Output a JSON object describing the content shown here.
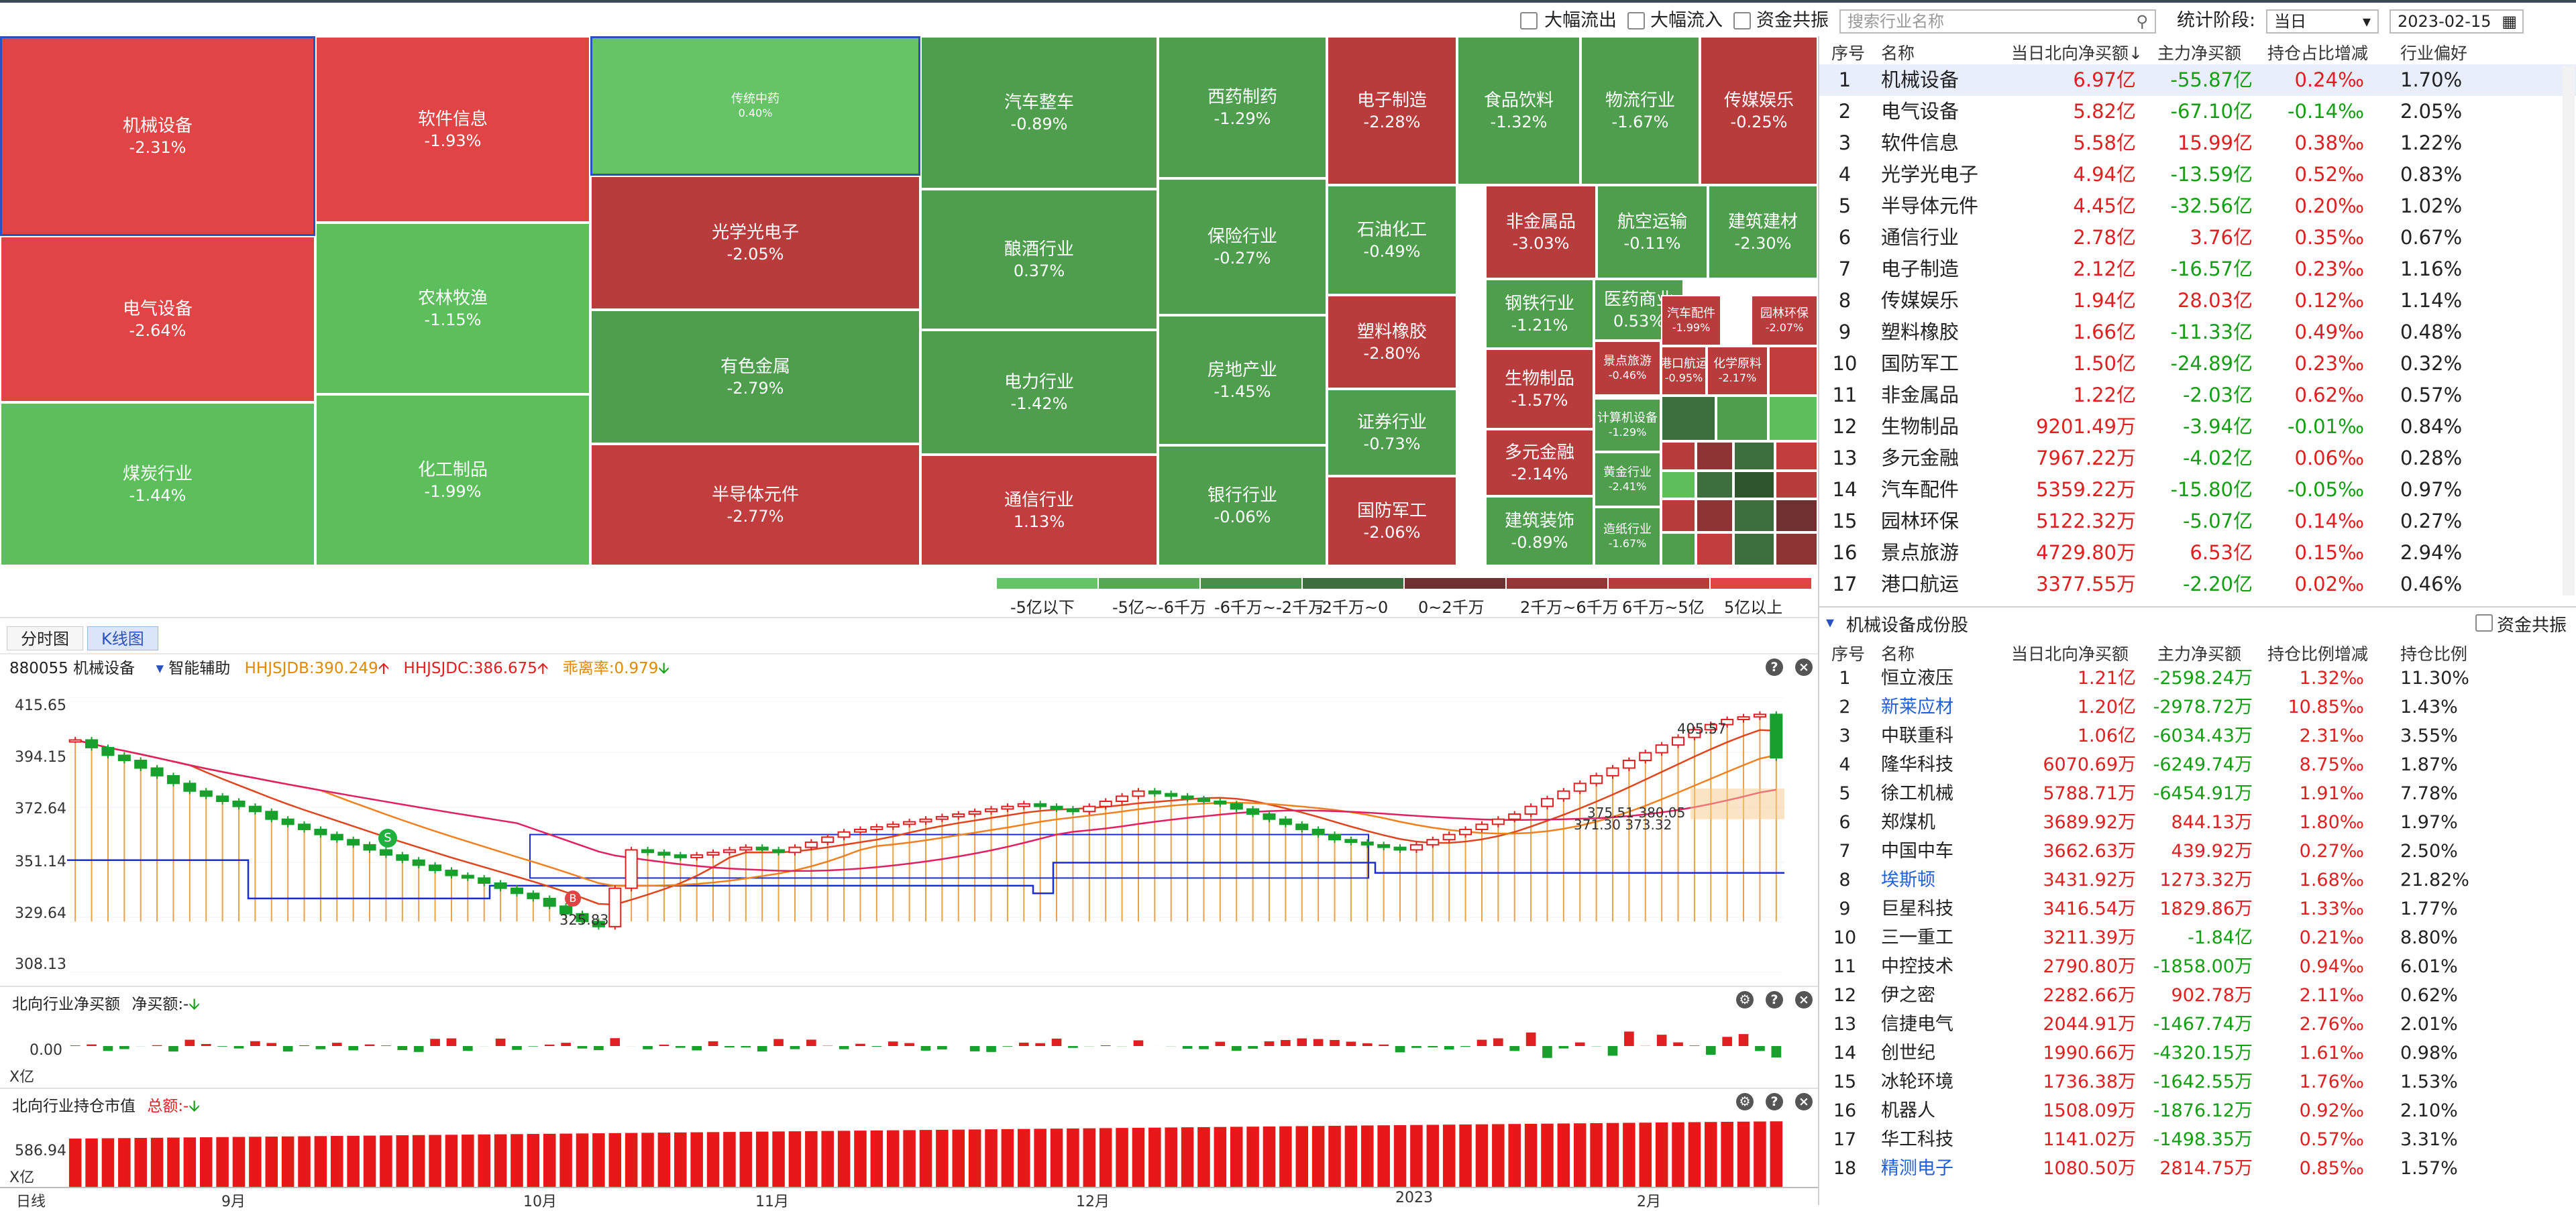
{
  "topbar": {
    "outflow_label": "大幅流出",
    "inflow_label": "大幅流入",
    "capital_label": "资金共振",
    "search_placeholder": "搜索行业名称",
    "period_label": "统计阶段:",
    "period_value": "当日",
    "date_value": "2023-02-15"
  },
  "treemap": {
    "tiles": [
      {
        "name": "机械设备",
        "value": "-2.31%",
        "color": "#e04444"
      },
      {
        "name": "电气设备",
        "value": "-2.64%",
        "color": "#e04444"
      },
      {
        "name": "煤炭行业",
        "value": "-1.44%",
        "color": "#5cbf5c"
      },
      {
        "name": "软件信息",
        "value": "-1.93%",
        "color": "#e04444"
      },
      {
        "name": "农林牧渔",
        "value": "-1.15%",
        "color": "#5cbf5c"
      },
      {
        "name": "化工制品",
        "value": "-1.99%",
        "color": "#5cbf5c"
      },
      {
        "name": "传统中药",
        "value": "0.40%",
        "color": "#66c466"
      },
      {
        "name": "光学光电子",
        "value": "-2.05%",
        "color": "#b93c3c"
      },
      {
        "name": "有色金属",
        "value": "-2.79%",
        "color": "#4e9e4e"
      },
      {
        "name": "半导体元件",
        "value": "-2.77%",
        "color": "#c23e3e"
      },
      {
        "name": "汽车整车",
        "value": "-0.89%",
        "color": "#4e9e4e"
      },
      {
        "name": "酿酒行业",
        "value": "0.37%",
        "color": "#4e9e4e"
      },
      {
        "name": "电力行业",
        "value": "-1.42%",
        "color": "#4e9e4e"
      },
      {
        "name": "通信行业",
        "value": "1.13%",
        "color": "#c23e3e"
      },
      {
        "name": "西药制药",
        "value": "-1.29%",
        "color": "#4e9e4e"
      },
      {
        "name": "保险行业",
        "value": "-0.27%",
        "color": "#4e9e4e"
      },
      {
        "name": "房地产业",
        "value": "-1.45%",
        "color": "#4e9e4e"
      },
      {
        "name": "银行行业",
        "value": "-0.06%",
        "color": "#4e9e4e"
      },
      {
        "name": "电子制造",
        "value": "-2.28%",
        "color": "#b93c3c"
      },
      {
        "name": "石油化工",
        "value": "-0.49%",
        "color": "#4e9e4e"
      },
      {
        "name": "塑料橡胶",
        "value": "-2.80%",
        "color": "#b93c3c"
      },
      {
        "name": "证券行业",
        "value": "-0.73%",
        "color": "#4e9e4e"
      },
      {
        "name": "国防军工",
        "value": "-2.06%",
        "color": "#b93c3c"
      },
      {
        "name": "食品饮料",
        "value": "-1.32%",
        "color": "#4e9e4e"
      },
      {
        "name": "物流行业",
        "value": "-1.67%",
        "color": "#4e9e4e"
      },
      {
        "name": "传媒娱乐",
        "value": "-0.25%",
        "color": "#b93c3c"
      },
      {
        "name": "非金属品",
        "value": "-3.03%",
        "color": "#b93c3c"
      },
      {
        "name": "航空运输",
        "value": "-0.11%",
        "color": "#4e9e4e"
      },
      {
        "name": "建筑建材",
        "value": "-2.30%",
        "color": "#4e9e4e"
      },
      {
        "name": "钢铁行业",
        "value": "-1.21%",
        "color": "#4e9e4e"
      },
      {
        "name": "生物制品",
        "value": "-1.57%",
        "color": "#b93c3c"
      },
      {
        "name": "多元金融",
        "value": "-2.14%",
        "color": "#b93c3c"
      },
      {
        "name": "建筑装饰",
        "value": "-0.89%",
        "color": "#4e9e4e"
      },
      {
        "name": "医药商业",
        "value": "0.53%",
        "color": "#4e9e4e"
      },
      {
        "name": "汽车配件",
        "value": "-1.99%",
        "color": "#b93c3c"
      },
      {
        "name": "园林环保",
        "value": "-2.07%",
        "color": "#b93c3c"
      },
      {
        "name": "景点旅游",
        "value": "-0.46%",
        "color": "#b93c3c"
      },
      {
        "name": "港口航运",
        "value": "-0.95%",
        "color": "#b93c3c"
      },
      {
        "name": "化学原料",
        "value": "-2.17%",
        "color": "#b93c3c"
      },
      {
        "name": "计算机设备",
        "value": "-1.29%",
        "color": "#4e9e4e"
      },
      {
        "name": "黄金行业",
        "value": "-2.41%",
        "color": "#4e9e4e"
      },
      {
        "name": "造纸行业",
        "value": "-1.67%",
        "color": "#4e9e4e"
      }
    ],
    "legend": [
      "-5亿以下",
      "-5亿~-6千万",
      "-6千万~-2千万",
      "-2千万~0",
      "0~2千万",
      "2千万~6千万",
      "6千万~5亿",
      "5亿以上"
    ],
    "legend_colors": [
      "#66c466",
      "#56a856",
      "#4a8e4a",
      "#3d6e3d",
      "#6e3030",
      "#923636",
      "#b93c3c",
      "#e04444"
    ]
  },
  "chart_panel": {
    "tabs": [
      "分时图",
      "K线图"
    ],
    "code_name": "880055 机械设备",
    "assist_label": "智能辅助",
    "ind1": "HHJSJDB:390.249",
    "ind2": "HHJSJDC:386.675",
    "ind3": "乖离率:0.979",
    "price_labels": [
      "415.65",
      "394.15",
      "372.64",
      "351.14",
      "329.64",
      "308.13"
    ],
    "annot_high": "405.57",
    "annot_low": "325.83",
    "annot_mid1": "375.51 380.05",
    "annot_mid2": "371.30 373.32",
    "sub1_title": "北向行业净买额",
    "sub1_value": "净买额:-",
    "sub1_zero": "0.00",
    "sub1_unit": "X亿",
    "sub2_title": "北向行业持仓市值",
    "sub2_value": "总额:-",
    "sub2_label": "586.94",
    "sub2_unit": "X亿",
    "axis_date_label": "日线",
    "months": [
      "9月",
      "10月",
      "11月",
      "12月",
      "2023",
      "2月"
    ]
  },
  "chart_data": {
    "type": "candlestick",
    "title": "880055 机械设备",
    "ylim": [
      308.13,
      415.65
    ],
    "x_months": [
      "9月",
      "10月",
      "11月",
      "12月",
      "2023",
      "2月"
    ],
    "annotations": {
      "high": 405.57,
      "low": 325.83
    },
    "close_path": [
      399,
      396,
      393,
      391,
      388,
      385,
      382,
      379,
      377,
      375,
      373,
      371,
      368,
      366,
      364,
      362,
      360,
      358,
      356,
      354,
      352,
      350,
      348,
      346,
      345,
      343,
      341,
      339,
      337,
      334,
      331,
      328,
      326,
      341,
      356,
      355,
      354,
      353,
      354,
      355,
      356,
      357,
      356,
      355,
      357,
      359,
      361,
      363,
      364,
      365,
      366,
      367,
      368,
      369,
      370,
      371,
      372,
      373,
      374,
      373,
      372,
      371,
      373,
      375,
      377,
      379,
      378,
      377,
      376,
      375,
      374,
      372,
      370,
      368,
      366,
      364,
      362,
      360,
      359,
      358,
      357,
      356,
      358,
      360,
      362,
      364,
      366,
      368,
      370,
      373,
      376,
      379,
      382,
      385,
      388,
      391,
      394,
      397,
      400,
      403,
      405,
      407,
      408,
      409,
      392
    ]
  },
  "sector_table": {
    "headers": [
      "序号",
      "名称",
      "当日北向净买额",
      "主力净买额",
      "持仓占比增减",
      "行业偏好"
    ],
    "rows": [
      {
        "idx": "1",
        "name": "机械设备",
        "north": "6.97亿",
        "main": "-55.87亿",
        "hold": "0.24‰",
        "pref": "1.70%"
      },
      {
        "idx": "2",
        "name": "电气设备",
        "north": "5.82亿",
        "main": "-67.10亿",
        "hold": "-0.14‰",
        "pref": "2.05%"
      },
      {
        "idx": "3",
        "name": "软件信息",
        "north": "5.58亿",
        "main": "15.99亿",
        "hold": "0.38‰",
        "pref": "1.22%"
      },
      {
        "idx": "4",
        "name": "光学光电子",
        "north": "4.94亿",
        "main": "-13.59亿",
        "hold": "0.52‰",
        "pref": "0.83%"
      },
      {
        "idx": "5",
        "name": "半导体元件",
        "north": "4.45亿",
        "main": "-32.56亿",
        "hold": "0.20‰",
        "pref": "1.02%"
      },
      {
        "idx": "6",
        "name": "通信行业",
        "north": "2.78亿",
        "main": "3.76亿",
        "hold": "0.35‰",
        "pref": "0.67%"
      },
      {
        "idx": "7",
        "name": "电子制造",
        "north": "2.12亿",
        "main": "-16.57亿",
        "hold": "0.23‰",
        "pref": "1.16%"
      },
      {
        "idx": "8",
        "name": "传媒娱乐",
        "north": "1.94亿",
        "main": "28.03亿",
        "hold": "0.12‰",
        "pref": "1.14%"
      },
      {
        "idx": "9",
        "name": "塑料橡胶",
        "north": "1.66亿",
        "main": "-11.33亿",
        "hold": "0.49‰",
        "pref": "0.48%"
      },
      {
        "idx": "10",
        "name": "国防军工",
        "north": "1.50亿",
        "main": "-24.89亿",
        "hold": "0.23‰",
        "pref": "0.32%"
      },
      {
        "idx": "11",
        "name": "非金属品",
        "north": "1.22亿",
        "main": "-2.03亿",
        "hold": "0.62‰",
        "pref": "0.57%"
      },
      {
        "idx": "12",
        "name": "生物制品",
        "north": "9201.49万",
        "main": "-3.94亿",
        "hold": "-0.01‰",
        "pref": "0.84%"
      },
      {
        "idx": "13",
        "name": "多元金融",
        "north": "7967.22万",
        "main": "-4.02亿",
        "hold": "0.06‰",
        "pref": "0.28%"
      },
      {
        "idx": "14",
        "name": "汽车配件",
        "north": "5359.22万",
        "main": "-15.80亿",
        "hold": "-0.05‰",
        "pref": "0.97%"
      },
      {
        "idx": "15",
        "name": "园林环保",
        "north": "5122.32万",
        "main": "-5.07亿",
        "hold": "0.14‰",
        "pref": "0.27%"
      },
      {
        "idx": "16",
        "name": "景点旅游",
        "north": "4729.80万",
        "main": "6.53亿",
        "hold": "0.15‰",
        "pref": "2.94%"
      },
      {
        "idx": "17",
        "name": "港口航运",
        "north": "3377.55万",
        "main": "-2.20亿",
        "hold": "0.02‰",
        "pref": "0.46%"
      }
    ]
  },
  "stock_table": {
    "title": "机械设备成份股",
    "capital_label": "资金共振",
    "headers": [
      "序号",
      "名称",
      "当日北向净买额",
      "主力净买额",
      "持仓比例增减",
      "持仓比例"
    ],
    "rows": [
      {
        "idx": "1",
        "name": "恒立液压",
        "north": "1.21亿",
        "main": "-2598.24万",
        "hold": "1.32‰",
        "ratio": "11.30%",
        "blue": false
      },
      {
        "idx": "2",
        "name": "新莱应材",
        "north": "1.20亿",
        "main": "-2978.72万",
        "hold": "10.85‰",
        "ratio": "1.43%",
        "blue": true
      },
      {
        "idx": "3",
        "name": "中联重科",
        "north": "1.06亿",
        "main": "-6034.43万",
        "hold": "2.31‰",
        "ratio": "3.55%",
        "blue": false
      },
      {
        "idx": "4",
        "name": "隆华科技",
        "north": "6070.69万",
        "main": "-6249.74万",
        "hold": "8.75‰",
        "ratio": "1.87%",
        "blue": false
      },
      {
        "idx": "5",
        "name": "徐工机械",
        "north": "5788.71万",
        "main": "-6454.91万",
        "hold": "1.91‰",
        "ratio": "7.78%",
        "blue": false
      },
      {
        "idx": "6",
        "name": "郑煤机",
        "north": "3689.92万",
        "main": "844.13万",
        "hold": "1.80‰",
        "ratio": "1.97%",
        "blue": false
      },
      {
        "idx": "7",
        "name": "中国中车",
        "north": "3662.63万",
        "main": "439.92万",
        "hold": "0.27‰",
        "ratio": "2.50%",
        "blue": false
      },
      {
        "idx": "8",
        "name": "埃斯顿",
        "north": "3431.92万",
        "main": "1273.32万",
        "hold": "1.68‰",
        "ratio": "21.82%",
        "blue": true
      },
      {
        "idx": "9",
        "name": "巨星科技",
        "north": "3416.54万",
        "main": "1829.86万",
        "hold": "1.33‰",
        "ratio": "1.77%",
        "blue": false
      },
      {
        "idx": "10",
        "name": "三一重工",
        "north": "3211.39万",
        "main": "-1.84亿",
        "hold": "0.21‰",
        "ratio": "8.80%",
        "blue": false
      },
      {
        "idx": "11",
        "name": "中控技术",
        "north": "2790.80万",
        "main": "-1858.00万",
        "hold": "0.94‰",
        "ratio": "6.01%",
        "blue": false
      },
      {
        "idx": "12",
        "name": "伊之密",
        "north": "2282.66万",
        "main": "902.78万",
        "hold": "2.11‰",
        "ratio": "0.62%",
        "blue": false
      },
      {
        "idx": "13",
        "name": "信捷电气",
        "north": "2044.91万",
        "main": "-1467.74万",
        "hold": "2.76‰",
        "ratio": "2.01%",
        "blue": false
      },
      {
        "idx": "14",
        "name": "创世纪",
        "north": "1990.66万",
        "main": "-4320.15万",
        "hold": "1.61‰",
        "ratio": "0.98%",
        "blue": false
      },
      {
        "idx": "15",
        "name": "冰轮环境",
        "north": "1736.38万",
        "main": "-1642.55万",
        "hold": "1.76‰",
        "ratio": "1.53%",
        "blue": false
      },
      {
        "idx": "16",
        "name": "机器人",
        "north": "1508.09万",
        "main": "-1876.12万",
        "hold": "0.92‰",
        "ratio": "2.10%",
        "blue": false
      },
      {
        "idx": "17",
        "name": "华工科技",
        "north": "1141.02万",
        "main": "-1498.35万",
        "hold": "0.57‰",
        "ratio": "3.31%",
        "blue": false
      },
      {
        "idx": "18",
        "name": "精测电子",
        "north": "1080.50万",
        "main": "2814.75万",
        "hold": "0.85‰",
        "ratio": "1.57%",
        "blue": true
      }
    ]
  }
}
